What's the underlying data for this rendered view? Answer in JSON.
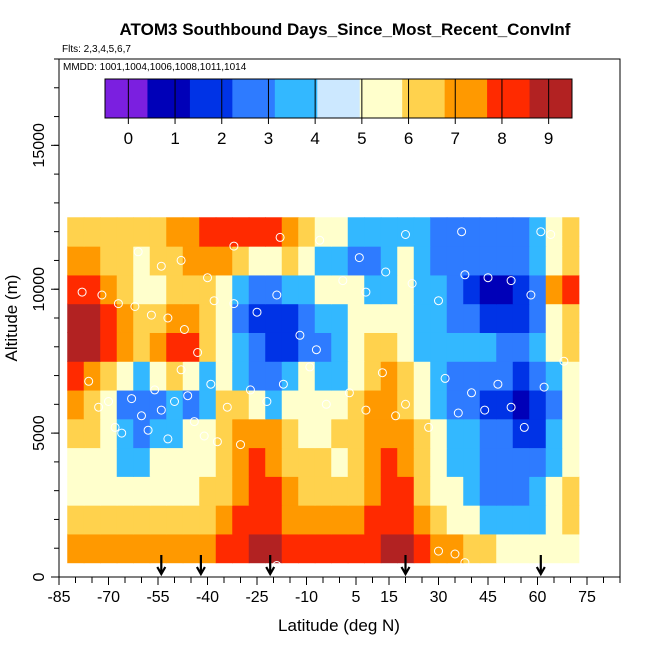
{
  "chart_data": {
    "type": "heatmap",
    "title": "ATOM3 Southbound Days_Since_Most_Recent_ConvInf",
    "flights_label": "Flts: 2,3,4,5,6,7",
    "mmdd_label": "MMDD: 1001,1004,1006,1008,1011,1014",
    "xlabel": "Latitude (deg N)",
    "ylabel": "Altitude (m)",
    "xlim": [
      -85,
      85
    ],
    "ylim": [
      0,
      18000
    ],
    "x_ticks": [
      -85,
      -70,
      -55,
      -40,
      -25,
      -10,
      5,
      15,
      30,
      45,
      60,
      75
    ],
    "x_tick_labels": [
      "-85",
      "-70",
      "-55",
      "-40",
      "-25",
      "-10",
      "5",
      "15",
      "30",
      "45",
      "60",
      "75"
    ],
    "y_ticks": [
      0,
      5000,
      10000,
      15000
    ],
    "y_tick_labels": [
      "0",
      "5000",
      "10000",
      "15000"
    ],
    "colorbar": {
      "min": -0.5,
      "max": 9.5,
      "ticks": [
        0,
        1,
        2,
        3,
        4,
        5,
        6,
        7,
        8,
        9
      ],
      "tick_labels": [
        "0",
        "1",
        "2",
        "3",
        "4",
        "5",
        "6",
        "7",
        "8",
        "9"
      ],
      "colors": [
        "#7b1fe0",
        "#0000b8",
        "#0033e6",
        "#2e7bff",
        "#33b8ff",
        "#cce8ff",
        "#ffffcc",
        "#ffd24d",
        "#ff9900",
        "#ff2a00",
        "#b22222"
      ]
    },
    "grid": {
      "lat": [
        -80,
        -75,
        -70,
        -65,
        -60,
        -55,
        -50,
        -45,
        -40,
        -35,
        -30,
        -25,
        -20,
        -15,
        -10,
        -5,
        0,
        5,
        10,
        15,
        20,
        25,
        30,
        35,
        40,
        45,
        50,
        55,
        60,
        65,
        70
      ],
      "alt": [
        1000,
        2000,
        3000,
        4000,
        5000,
        6000,
        7000,
        8000,
        9000,
        10000,
        11000,
        12000
      ],
      "values": [
        [
          7,
          7,
          7,
          7,
          7,
          7,
          7,
          7,
          7,
          8,
          8,
          9,
          9,
          8,
          8,
          8,
          8,
          8,
          8,
          9,
          9,
          8,
          7,
          7,
          6,
          6,
          5,
          5,
          5,
          5,
          5
        ],
        [
          6,
          6,
          6,
          6,
          6,
          6,
          6,
          6,
          6,
          7,
          8,
          8,
          8,
          7,
          7,
          7,
          7,
          7,
          8,
          8,
          8,
          7,
          6,
          5,
          5,
          4,
          4,
          4,
          4,
          5,
          6
        ],
        [
          5,
          5,
          5,
          5,
          5,
          5,
          5,
          5,
          6,
          6,
          7,
          8,
          8,
          7,
          6,
          6,
          6,
          6,
          7,
          8,
          8,
          6,
          5,
          5,
          4,
          3,
          3,
          3,
          4,
          5,
          6
        ],
        [
          5,
          5,
          5,
          4,
          4,
          5,
          5,
          5,
          5,
          6,
          7,
          8,
          7,
          6,
          6,
          6,
          5,
          6,
          7,
          8,
          7,
          6,
          5,
          4,
          4,
          3,
          3,
          3,
          3,
          4,
          5
        ],
        [
          6,
          6,
          5,
          4,
          3,
          4,
          4,
          5,
          5,
          6,
          7,
          7,
          7,
          6,
          5,
          5,
          6,
          6,
          7,
          7,
          7,
          6,
          5,
          4,
          4,
          3,
          3,
          2,
          2,
          4,
          5
        ],
        [
          7,
          6,
          5,
          3,
          3,
          3,
          4,
          3,
          4,
          6,
          6,
          5,
          4,
          5,
          5,
          5,
          5,
          6,
          7,
          7,
          6,
          5,
          4,
          3,
          3,
          2,
          2,
          1,
          2,
          3,
          5
        ],
        [
          8,
          7,
          6,
          5,
          4,
          5,
          6,
          5,
          4,
          5,
          4,
          3,
          3,
          4,
          5,
          4,
          4,
          5,
          6,
          7,
          6,
          5,
          4,
          3,
          3,
          3,
          3,
          2,
          3,
          4,
          5
        ],
        [
          9,
          9,
          8,
          7,
          6,
          7,
          8,
          8,
          6,
          5,
          4,
          3,
          2,
          2,
          3,
          3,
          4,
          5,
          6,
          6,
          5,
          4,
          4,
          4,
          4,
          4,
          3,
          3,
          4,
          5,
          6
        ],
        [
          9,
          9,
          8,
          7,
          6,
          6,
          7,
          7,
          6,
          5,
          3,
          2,
          2,
          2,
          3,
          4,
          4,
          5,
          5,
          5,
          5,
          4,
          4,
          3,
          3,
          2,
          2,
          2,
          3,
          5,
          6
        ],
        [
          8,
          8,
          7,
          6,
          5,
          5,
          6,
          6,
          6,
          5,
          4,
          3,
          3,
          4,
          4,
          5,
          5,
          5,
          4,
          4,
          5,
          4,
          4,
          3,
          2,
          1,
          1,
          2,
          3,
          7,
          8
        ],
        [
          7,
          7,
          6,
          6,
          5,
          6,
          6,
          7,
          7,
          7,
          6,
          5,
          5,
          6,
          5,
          4,
          4,
          3,
          3,
          4,
          5,
          4,
          3,
          3,
          3,
          3,
          3,
          3,
          4,
          5,
          6
        ],
        [
          6,
          6,
          6,
          6,
          6,
          6,
          7,
          7,
          8,
          8,
          8,
          8,
          8,
          7,
          6,
          5,
          5,
          4,
          4,
          4,
          4,
          4,
          3,
          3,
          3,
          3,
          3,
          3,
          4,
          5,
          6
        ]
      ]
    },
    "convective_markers_lat": [
      -54,
      -42,
      -21,
      20,
      61
    ],
    "measurement_points": [
      [
        -76,
        6800
      ],
      [
        -73,
        5900
      ],
      [
        -70,
        6100
      ],
      [
        -68,
        5200
      ],
      [
        -66,
        5000
      ],
      [
        -63,
        6200
      ],
      [
        -60,
        5600
      ],
      [
        -58,
        5100
      ],
      [
        -56,
        6500
      ],
      [
        -54,
        5800
      ],
      [
        -52,
        4800
      ],
      [
        -50,
        6100
      ],
      [
        -48,
        7200
      ],
      [
        -46,
        6300
      ],
      [
        -44,
        5400
      ],
      [
        -41,
        4900
      ],
      [
        -39,
        6700
      ],
      [
        -37,
        4700
      ],
      [
        -34,
        5900
      ],
      [
        -30,
        4600
      ],
      [
        -27,
        6500
      ],
      [
        -22,
        6100
      ],
      [
        -17,
        6700
      ],
      [
        -9,
        7300
      ],
      [
        -4,
        6000
      ],
      [
        3,
        6400
      ],
      [
        8,
        5800
      ],
      [
        13,
        7100
      ],
      [
        17,
        5600
      ],
      [
        20,
        6000
      ],
      [
        27,
        5200
      ],
      [
        32,
        6900
      ],
      [
        36,
        5700
      ],
      [
        40,
        6400
      ],
      [
        44,
        5800
      ],
      [
        48,
        6700
      ],
      [
        52,
        5900
      ],
      [
        56,
        5200
      ],
      [
        62,
        6600
      ],
      [
        68,
        7500
      ],
      [
        -78,
        9900
      ],
      [
        -72,
        9800
      ],
      [
        -67,
        9500
      ],
      [
        -62,
        9400
      ],
      [
        -57,
        9100
      ],
      [
        -52,
        9000
      ],
      [
        -47,
        8600
      ],
      [
        -43,
        7800
      ],
      [
        -38,
        9600
      ],
      [
        -32,
        9500
      ],
      [
        -25,
        9200
      ],
      [
        -19,
        9800
      ],
      [
        -12,
        8400
      ],
      [
        -7,
        7900
      ],
      [
        1,
        10300
      ],
      [
        8,
        9900
      ],
      [
        14,
        10600
      ],
      [
        22,
        10200
      ],
      [
        30,
        9600
      ],
      [
        38,
        10500
      ],
      [
        45,
        10400
      ],
      [
        52,
        10300
      ],
      [
        58,
        9800
      ],
      [
        -61,
        11300
      ],
      [
        -54,
        10800
      ],
      [
        -48,
        11000
      ],
      [
        -40,
        10400
      ],
      [
        -32,
        11500
      ],
      [
        -18,
        11800
      ],
      [
        -6,
        11700
      ],
      [
        6,
        11100
      ],
      [
        20,
        11900
      ],
      [
        37,
        12000
      ],
      [
        61,
        12000
      ],
      [
        64,
        11900
      ],
      [
        -25,
        300
      ],
      [
        -19,
        400
      ],
      [
        15,
        300
      ],
      [
        30,
        900
      ],
      [
        35,
        800
      ],
      [
        38,
        500
      ]
    ]
  }
}
